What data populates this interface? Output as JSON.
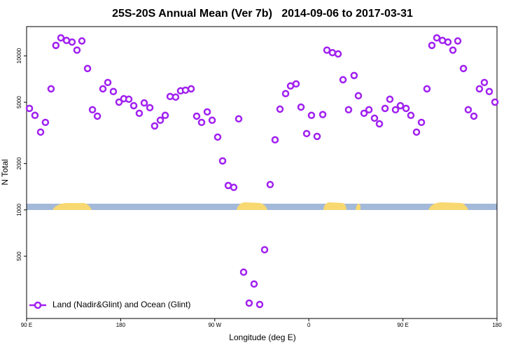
{
  "chart_data": {
    "type": "scatter",
    "title": "25S-20S Annual Mean (Ver 7b)   2014-09-06 to 2017-03-31",
    "x_label": "Longitude (deg E)",
    "y_label": "N Total",
    "y_log": true,
    "xlim": [
      90,
      540
    ],
    "ylim": [
      197,
      15500
    ],
    "xticks": [
      {
        "value": 90,
        "label": "90 E"
      },
      180,
      {
        "value": 270,
        "label": "90 W"
      },
      {
        "value": 360,
        "label": "0"
      },
      {
        "value": 450,
        "label": "90 E"
      },
      {
        "value": 540,
        "label": "180"
      }
    ],
    "yticks": [
      500,
      1000,
      2000,
      5000,
      10000
    ],
    "legend": "bottom-left",
    "series": [
      {
        "name": "Land (Nadir&Glint) and Ocean (Glint)",
        "color": "#a020f0",
        "x": [
          92.7,
          98,
          103.4,
          108,
          113.4,
          118,
          122.8,
          128.2,
          133.5,
          138.2,
          142.9,
          148.3,
          153,
          157.7,
          163,
          167.7,
          173,
          178.4,
          183,
          187.8,
          192.5,
          197.8,
          202.5,
          207.9,
          212.5,
          217.9,
          222.6,
          227.3,
          232.6,
          237.3,
          242,
          247.4,
          252.7,
          257.4,
          262.8,
          267.5,
          272.8,
          277.5,
          282.9,
          288.2,
          292.9,
          297.6,
          302.9,
          307.6,
          313,
          317.7,
          323,
          327.7,
          332.4,
          337.8,
          342.5,
          347.8,
          352.5,
          357.9,
          362.5,
          367.9,
          373.3,
          377.3,
          382.6,
          388,
          392.7,
          398,
          403.3,
          407.4,
          412.8,
          417.5,
          422.8,
          427.5,
          432.9,
          437.5,
          442.9,
          447.6,
          453,
          457.6,
          463,
          467.7,
          473,
          477.7,
          482.4,
          487.8,
          493.1,
          497.8,
          502.5,
          507.9,
          512.5,
          517.9,
          523.2,
          527.9,
          532.6,
          538
        ],
        "values": [
          4560,
          4110,
          3200,
          3700,
          6110,
          11700,
          13100,
          12600,
          12300,
          10900,
          12500,
          8280,
          4470,
          4060,
          6110,
          6720,
          5870,
          5010,
          5270,
          5230,
          4750,
          4240,
          4950,
          4610,
          3510,
          3820,
          4110,
          5450,
          5400,
          5930,
          5990,
          6110,
          4060,
          3700,
          4330,
          3820,
          2970,
          2080,
          1440,
          1400,
          3900,
          394,
          248,
          330,
          243,
          551,
          1460,
          2850,
          4510,
          5690,
          6380,
          6580,
          4650,
          3130,
          4110,
          3000,
          4160,
          10900,
          10500,
          10300,
          7000,
          4470,
          7460,
          5510,
          4240,
          4470,
          3940,
          3620,
          4560,
          5230,
          4470,
          4750,
          4560,
          4110,
          3200,
          3700,
          6110,
          11700,
          13100,
          12600,
          12300,
          10900,
          12500,
          8280,
          4470,
          4060,
          6110,
          6720,
          5870,
          5010
        ]
      }
    ]
  }
}
